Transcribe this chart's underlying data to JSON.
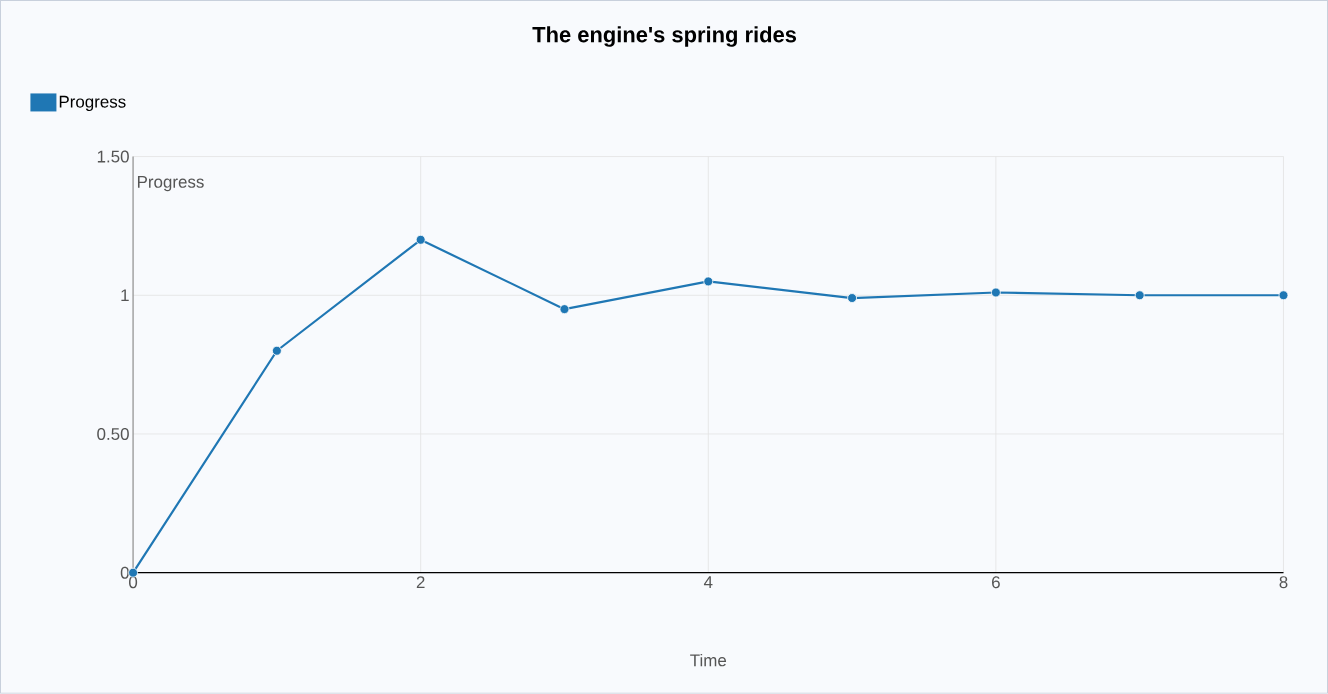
{
  "chart_data": {
    "type": "line",
    "title": "The engine's spring rides",
    "xlabel": "Time",
    "ylabel": "Progress",
    "x": [
      0,
      1,
      2,
      3,
      4,
      5,
      6,
      7,
      8
    ],
    "series": [
      {
        "name": "Progress",
        "color": "#1f77b4",
        "values": [
          0,
          0.8,
          1.2,
          0.95,
          1.05,
          0.99,
          1.01,
          1.0,
          1.0
        ]
      }
    ],
    "xlim": [
      0,
      8
    ],
    "xticks": [
      0,
      2,
      4,
      6,
      8
    ],
    "ylim": [
      0,
      1.5
    ],
    "yticks": [
      0,
      {
        "value": 0.5,
        "label": "0.50"
      },
      1,
      {
        "value": 1.5,
        "label": "1.50"
      }
    ],
    "grid": true,
    "legend": "top left",
    "marker": "circle",
    "line_style": "solid"
  }
}
